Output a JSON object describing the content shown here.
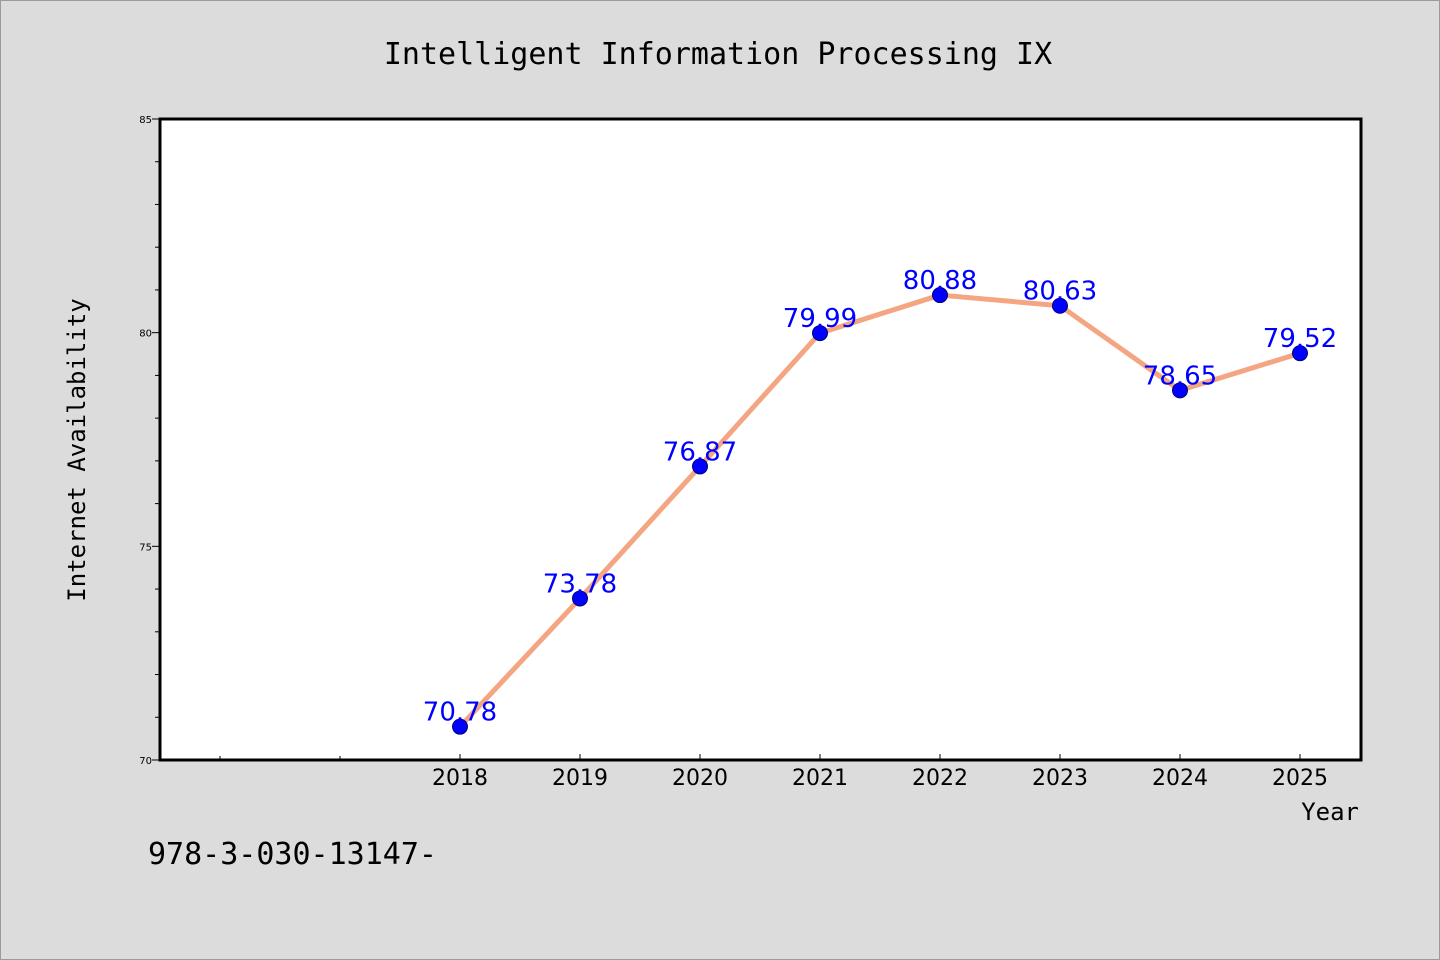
{
  "chart_data": {
    "type": "line",
    "title": "Intelligent Information Processing IX",
    "xlabel": "Year",
    "ylabel": "Internet Availability",
    "x": [
      "2018",
      "2019",
      "2020",
      "2021",
      "2022",
      "2023",
      "2024",
      "2025"
    ],
    "series": [
      {
        "values": [
          70.78,
          73.78,
          76.87,
          79.99,
          80.88,
          80.63,
          78.65,
          79.52
        ]
      }
    ],
    "data_labels": [
      "70.78",
      "73.78",
      "76.87",
      "79.99",
      "80.88",
      "80.63",
      "78.65",
      "79.52"
    ],
    "ylim": [
      70,
      85
    ],
    "yticks": [
      "70",
      "75",
      "80",
      "85"
    ],
    "line_color": "#f4a582",
    "marker_color": "#0000ff",
    "label_color": "#0000ff",
    "grid": false,
    "legend": "none"
  },
  "footer_text": "978-3-030-13147-"
}
